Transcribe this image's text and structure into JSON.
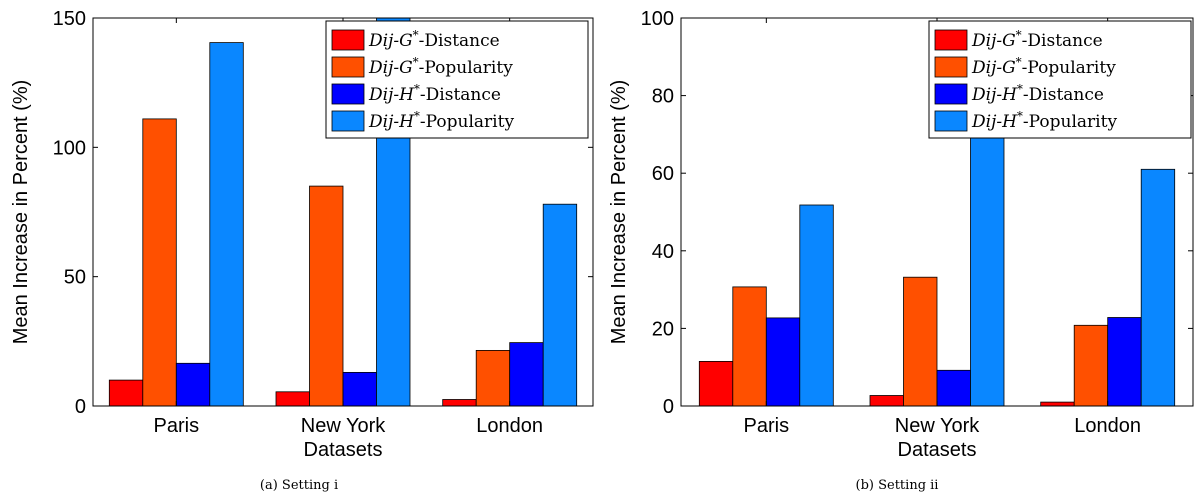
{
  "chart_data": [
    {
      "type": "bar",
      "caption": "(a) Setting i",
      "xlabel": "Datasets",
      "ylabel": "Mean Increase in Percent (%)",
      "ylim": [
        0,
        150
      ],
      "yticks": [
        0,
        50,
        100,
        150
      ],
      "categories": [
        "Paris",
        "New York",
        "London"
      ],
      "legend_position": "top-right",
      "series": [
        {
          "name": "Dij-G*-Distance",
          "color": "#ff0000",
          "values": [
            10,
            5.5,
            2.5
          ]
        },
        {
          "name": "Dij-G*-Popularity",
          "color": "#ff5000",
          "values": [
            111,
            85,
            21.5
          ]
        },
        {
          "name": "Dij-H*-Distance",
          "color": "#0000ff",
          "values": [
            16.5,
            13,
            24.5
          ]
        },
        {
          "name": "Dij-H*-Popularity",
          "color": "#0a87ff",
          "values": [
            140.5,
            150,
            78
          ]
        }
      ]
    },
    {
      "type": "bar",
      "caption": "(b) Setting ii",
      "xlabel": "Datasets",
      "ylabel": "Mean Increase in Percent (%)",
      "ylim": [
        0,
        100
      ],
      "yticks": [
        0,
        20,
        40,
        60,
        80,
        100
      ],
      "categories": [
        "Paris",
        "New York",
        "London"
      ],
      "legend_position": "top-right",
      "series": [
        {
          "name": "Dij-G*-Distance",
          "color": "#ff0000",
          "values": [
            11.5,
            2.7,
            1
          ]
        },
        {
          "name": "Dij-G*-Popularity",
          "color": "#ff5000",
          "values": [
            30.7,
            33.2,
            20.8
          ]
        },
        {
          "name": "Dij-H*-Distance",
          "color": "#0000ff",
          "values": [
            22.7,
            9.2,
            22.8
          ]
        },
        {
          "name": "Dij-H*-Popularity",
          "color": "#0a87ff",
          "values": [
            51.8,
            70,
            61
          ]
        }
      ]
    }
  ]
}
